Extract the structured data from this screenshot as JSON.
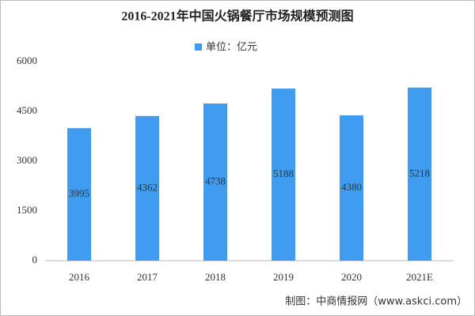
{
  "chart_data": {
    "type": "bar",
    "title": "2016-2021年中国火锅餐厅市场规模预测图",
    "categories": [
      "2016",
      "2017",
      "2018",
      "2019",
      "2020",
      "2021E"
    ],
    "series": [
      {
        "name": "单位：亿元",
        "color": "#3f9cf0",
        "values": [
          3995,
          4362,
          4738,
          5188,
          4380,
          5218
        ]
      }
    ],
    "ylim": [
      0,
      6000
    ],
    "yticks": [
      0,
      1500,
      3000,
      4500,
      6000
    ],
    "grid": false,
    "source": "制图：中商情报网（www.askci.com）"
  }
}
